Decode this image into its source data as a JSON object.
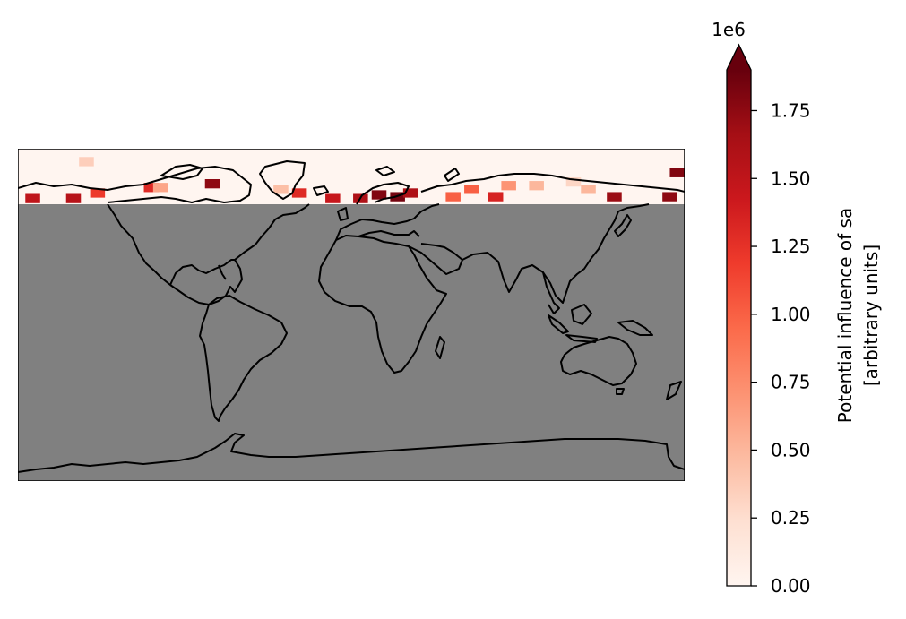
{
  "chart_data": {
    "type": "heatmap",
    "projection": "PlateCarree",
    "masked_region_color": "#808080",
    "coastline_color": "#000000",
    "colormap": "Reds",
    "colormap_stops": [
      "#fff5f0",
      "#fee0d2",
      "#fcbba1",
      "#fc9272",
      "#fb6a4a",
      "#ef3b2c",
      "#cb181d",
      "#a50f15",
      "#67000d"
    ],
    "colorbar": {
      "label_line1": "Potential influence of sa",
      "label_line2": "[arbitrary units]",
      "offset_text": "1e6",
      "vmin": 0,
      "vmax": 1.9,
      "extend": "max",
      "ticks": [
        0,
        0.25,
        0.5,
        0.75,
        1.0,
        1.25,
        1.5,
        1.75
      ],
      "tick_labels": [
        "0.00",
        "0.25",
        "0.50",
        "0.75",
        "1.00",
        "1.25",
        "1.50",
        "1.75"
      ]
    },
    "data_region": {
      "lat_min": 60,
      "lat_max": 90,
      "lon_min": -180,
      "lon_max": 180
    },
    "cells": [
      {
        "lon": -172,
        "lat": 63,
        "value": 1.5
      },
      {
        "lon": -150,
        "lat": 63,
        "value": 1.55
      },
      {
        "lon": -137,
        "lat": 66,
        "value": 1.2
      },
      {
        "lon": -143,
        "lat": 83,
        "value": 0.35
      },
      {
        "lon": -108,
        "lat": 69,
        "value": 1.3
      },
      {
        "lon": -103,
        "lat": 69,
        "value": 0.6
      },
      {
        "lon": -75,
        "lat": 71,
        "value": 1.75
      },
      {
        "lon": -38,
        "lat": 68,
        "value": 0.45
      },
      {
        "lon": -28,
        "lat": 66,
        "value": 1.3
      },
      {
        "lon": -10,
        "lat": 63,
        "value": 1.45
      },
      {
        "lon": 5,
        "lat": 63,
        "value": 1.6
      },
      {
        "lon": 15,
        "lat": 65,
        "value": 1.8
      },
      {
        "lon": 25,
        "lat": 64,
        "value": 1.85
      },
      {
        "lon": 32,
        "lat": 66,
        "value": 1.6
      },
      {
        "lon": 55,
        "lat": 64,
        "value": 1.0
      },
      {
        "lon": 65,
        "lat": 68,
        "value": 1.0
      },
      {
        "lon": 78,
        "lat": 64,
        "value": 1.35
      },
      {
        "lon": 85,
        "lat": 70,
        "value": 0.7
      },
      {
        "lon": 100,
        "lat": 70,
        "value": 0.5
      },
      {
        "lon": 120,
        "lat": 72,
        "value": 0.3
      },
      {
        "lon": 128,
        "lat": 68,
        "value": 0.5
      },
      {
        "lon": 142,
        "lat": 64,
        "value": 1.7
      },
      {
        "lon": 172,
        "lat": 64,
        "value": 1.75
      },
      {
        "lon": 176,
        "lat": 77,
        "value": 1.8
      }
    ]
  }
}
